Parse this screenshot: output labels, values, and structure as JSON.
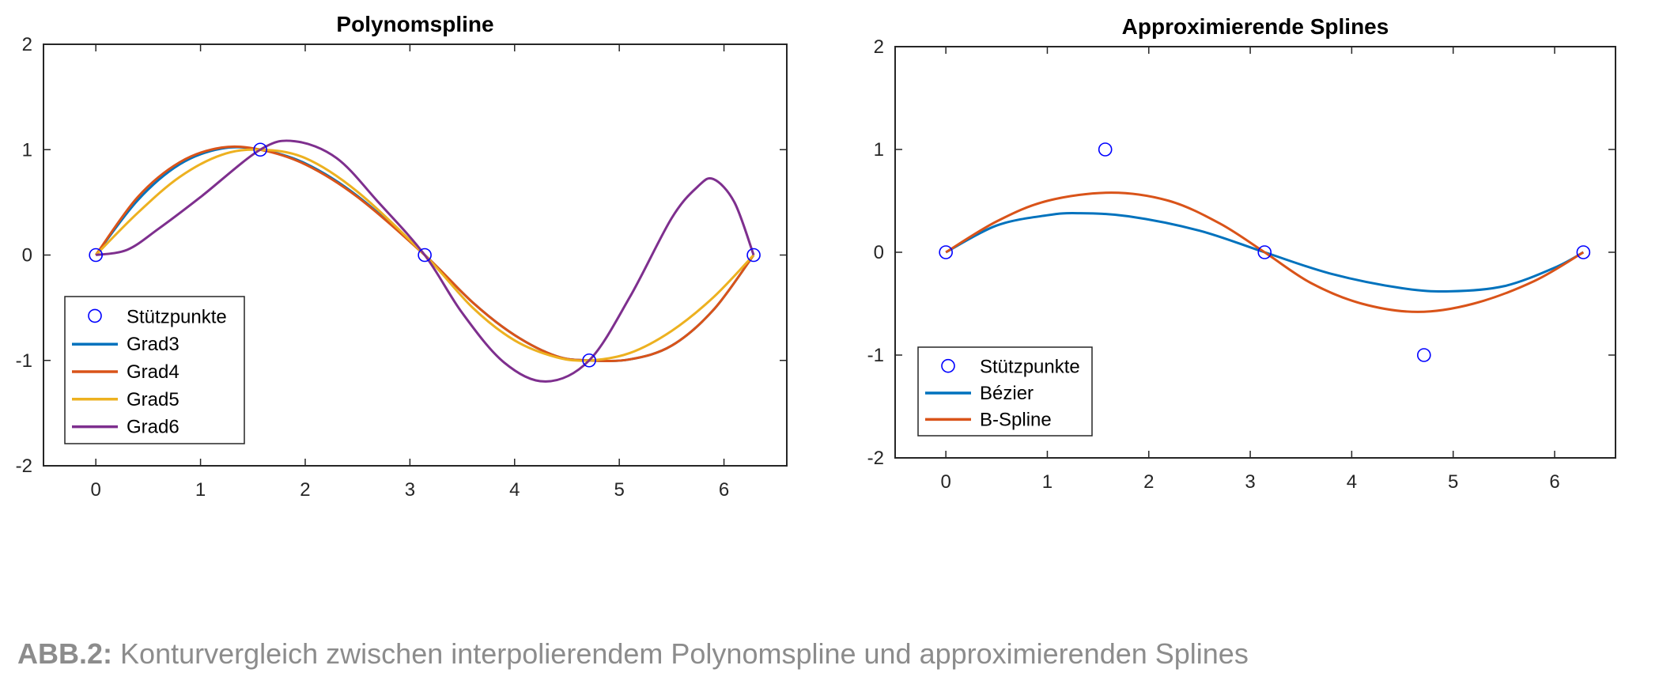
{
  "caption": {
    "label": "ABB.2:",
    "text": "Konturvergleich zwischen interpolierendem Polynomspline und approximierenden Splines"
  },
  "chart_data": [
    {
      "type": "line",
      "title": "Polynomspline",
      "xlabel": "",
      "ylabel": "",
      "xlim": [
        -0.5,
        6.6
      ],
      "ylim": [
        -2,
        2
      ],
      "xticks": [
        0,
        1,
        2,
        3,
        4,
        5,
        6
      ],
      "yticks": [
        -2,
        -1,
        0,
        1,
        2
      ],
      "legend_position": "bottom-left",
      "markers": {
        "name": "Stützpunkte",
        "color": "#0000ff",
        "points": [
          [
            0,
            0
          ],
          [
            1.5708,
            1
          ],
          [
            3.1416,
            0
          ],
          [
            4.7124,
            -1
          ],
          [
            6.2832,
            0
          ]
        ]
      },
      "series": [
        {
          "name": "Grad3",
          "color": "#0072bd",
          "x": [
            0,
            0.4,
            0.8,
            1.2,
            1.5708,
            2.0,
            2.5,
            3.1416,
            3.6,
            4.0,
            4.4,
            4.7124,
            5.1,
            5.5,
            5.9,
            6.2832
          ],
          "y": [
            0,
            0.52,
            0.86,
            1.01,
            1.0,
            0.87,
            0.56,
            0,
            -0.45,
            -0.76,
            -0.96,
            -1.0,
            -0.99,
            -0.86,
            -0.52,
            0
          ]
        },
        {
          "name": "Grad4",
          "color": "#d95319",
          "x": [
            0,
            0.4,
            0.8,
            1.2,
            1.5708,
            2.0,
            2.5,
            3.1416,
            3.6,
            4.0,
            4.4,
            4.7124,
            5.1,
            5.5,
            5.9,
            6.2832
          ],
          "y": [
            0,
            0.55,
            0.88,
            1.02,
            1.0,
            0.86,
            0.55,
            0,
            -0.45,
            -0.76,
            -0.96,
            -1.0,
            -0.99,
            -0.86,
            -0.52,
            0
          ]
        },
        {
          "name": "Grad5",
          "color": "#edb120",
          "x": [
            0,
            0.4,
            0.8,
            1.2,
            1.5708,
            2.0,
            2.5,
            3.1416,
            3.6,
            4.0,
            4.4,
            4.7124,
            5.1,
            5.5,
            5.9,
            6.2832
          ],
          "y": [
            0,
            0.4,
            0.74,
            0.95,
            1.0,
            0.92,
            0.6,
            0,
            -0.5,
            -0.81,
            -0.97,
            -1.0,
            -0.93,
            -0.72,
            -0.4,
            0
          ]
        },
        {
          "name": "Grad6",
          "color": "#7e2f8e",
          "x": [
            0,
            0.3,
            0.6,
            1.0,
            1.5708,
            1.9,
            2.3,
            2.7,
            3.1416,
            3.5,
            3.9,
            4.3,
            4.7124,
            5.1,
            5.5,
            5.75,
            5.9,
            6.1,
            6.2832
          ],
          "y": [
            0,
            0.05,
            0.25,
            0.55,
            1.0,
            1.08,
            0.92,
            0.5,
            0,
            -0.55,
            -1.02,
            -1.2,
            -1.0,
            -0.4,
            0.35,
            0.65,
            0.72,
            0.5,
            0
          ]
        }
      ]
    },
    {
      "type": "line",
      "title": "Approximierende Splines",
      "xlabel": "",
      "ylabel": "",
      "xlim": [
        -0.5,
        6.6
      ],
      "ylim": [
        -2,
        2
      ],
      "xticks": [
        0,
        1,
        2,
        3,
        4,
        5,
        6
      ],
      "yticks": [
        -2,
        -1,
        0,
        1,
        2
      ],
      "legend_position": "bottom-left",
      "markers": {
        "name": "Stützpunkte",
        "color": "#0000ff",
        "points": [
          [
            0,
            0
          ],
          [
            1.5708,
            1
          ],
          [
            3.1416,
            0
          ],
          [
            4.7124,
            -1
          ],
          [
            6.2832,
            0
          ]
        ]
      },
      "series": [
        {
          "name": "Bézier",
          "color": "#0072bd",
          "x": [
            0,
            0.5,
            1.0,
            1.3,
            1.8,
            2.5,
            3.1416,
            3.8,
            4.5,
            4.97,
            5.5,
            6.0,
            6.2832
          ],
          "y": [
            0,
            0.26,
            0.36,
            0.38,
            0.35,
            0.21,
            0,
            -0.21,
            -0.35,
            -0.38,
            -0.33,
            -0.15,
            0
          ]
        },
        {
          "name": "B-Spline",
          "color": "#d95319",
          "x": [
            0,
            0.5,
            1.0,
            1.63,
            2.2,
            2.7,
            3.1416,
            3.6,
            4.1,
            4.65,
            5.2,
            5.8,
            6.2832
          ],
          "y": [
            0,
            0.3,
            0.5,
            0.58,
            0.5,
            0.28,
            0,
            -0.3,
            -0.5,
            -0.58,
            -0.5,
            -0.28,
            0
          ]
        }
      ]
    }
  ]
}
